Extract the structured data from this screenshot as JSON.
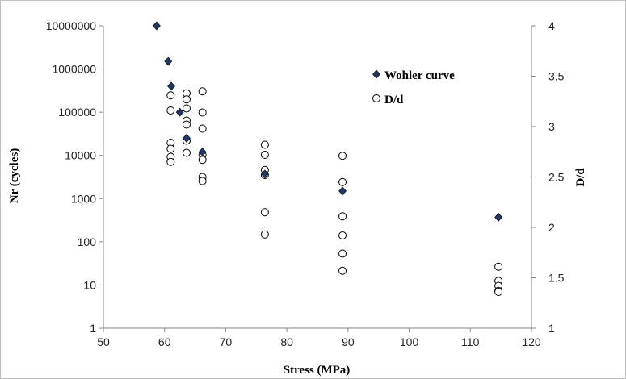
{
  "chart_data": {
    "type": "scatter",
    "xlabel": "Stress (MPa)",
    "ylabel": "Nr (cycles)",
    "y2label": "D/d",
    "xlim": [
      50,
      120
    ],
    "ylim": [
      1,
      10000000
    ],
    "yscale": "log",
    "y2lim": [
      1,
      4
    ],
    "grid": false,
    "legend_position": "top-right",
    "x_ticks": [
      "50",
      "60",
      "70",
      "80",
      "90",
      "100",
      "110",
      "120"
    ],
    "y_ticks": [
      "1",
      "10",
      "100",
      "1000",
      "10000",
      "100000",
      "1000000",
      "10000000"
    ],
    "y2_ticks": [
      "1",
      "1.5",
      "2",
      "2.5",
      "3",
      "3.5",
      "4"
    ],
    "series": [
      {
        "name": "Wohler curve",
        "axis": "left",
        "marker": "diamond",
        "color": "#1f3864",
        "points": [
          {
            "x": 58.7,
            "y": 10000000
          },
          {
            "x": 60.6,
            "y": 1500000
          },
          {
            "x": 61.1,
            "y": 400000
          },
          {
            "x": 62.5,
            "y": 100000
          },
          {
            "x": 63.6,
            "y": 25000
          },
          {
            "x": 66.2,
            "y": 12000
          },
          {
            "x": 76.4,
            "y": 3700
          },
          {
            "x": 89.1,
            "y": 1500
          },
          {
            "x": 114.6,
            "y": 370
          }
        ]
      },
      {
        "name": "D/d",
        "axis": "right",
        "marker": "circle",
        "color": "#000000",
        "points": [
          {
            "x": 61.0,
            "y": 3.31
          },
          {
            "x": 61.0,
            "y": 3.16
          },
          {
            "x": 61.0,
            "y": 2.84
          },
          {
            "x": 61.0,
            "y": 2.78
          },
          {
            "x": 61.0,
            "y": 2.7
          },
          {
            "x": 61.0,
            "y": 2.65
          },
          {
            "x": 63.6,
            "y": 3.33
          },
          {
            "x": 63.6,
            "y": 3.27
          },
          {
            "x": 63.6,
            "y": 3.18
          },
          {
            "x": 63.6,
            "y": 3.06
          },
          {
            "x": 63.6,
            "y": 3.02
          },
          {
            "x": 63.6,
            "y": 2.86
          },
          {
            "x": 63.6,
            "y": 2.74
          },
          {
            "x": 66.2,
            "y": 3.35
          },
          {
            "x": 66.2,
            "y": 3.14
          },
          {
            "x": 66.2,
            "y": 2.98
          },
          {
            "x": 66.2,
            "y": 2.72
          },
          {
            "x": 66.2,
            "y": 2.67
          },
          {
            "x": 66.2,
            "y": 2.5
          },
          {
            "x": 66.2,
            "y": 2.46
          },
          {
            "x": 76.4,
            "y": 2.82
          },
          {
            "x": 76.4,
            "y": 2.72
          },
          {
            "x": 76.4,
            "y": 2.57
          },
          {
            "x": 76.4,
            "y": 2.52
          },
          {
            "x": 76.4,
            "y": 2.15
          },
          {
            "x": 76.4,
            "y": 1.93
          },
          {
            "x": 89.1,
            "y": 2.71
          },
          {
            "x": 89.1,
            "y": 2.45
          },
          {
            "x": 89.1,
            "y": 2.11
          },
          {
            "x": 89.1,
            "y": 1.92
          },
          {
            "x": 89.1,
            "y": 1.74
          },
          {
            "x": 89.1,
            "y": 1.57
          },
          {
            "x": 114.6,
            "y": 1.61
          },
          {
            "x": 114.6,
            "y": 1.47
          },
          {
            "x": 114.6,
            "y": 1.42
          },
          {
            "x": 114.6,
            "y": 1.37
          },
          {
            "x": 114.6,
            "y": 1.36
          }
        ]
      }
    ]
  }
}
